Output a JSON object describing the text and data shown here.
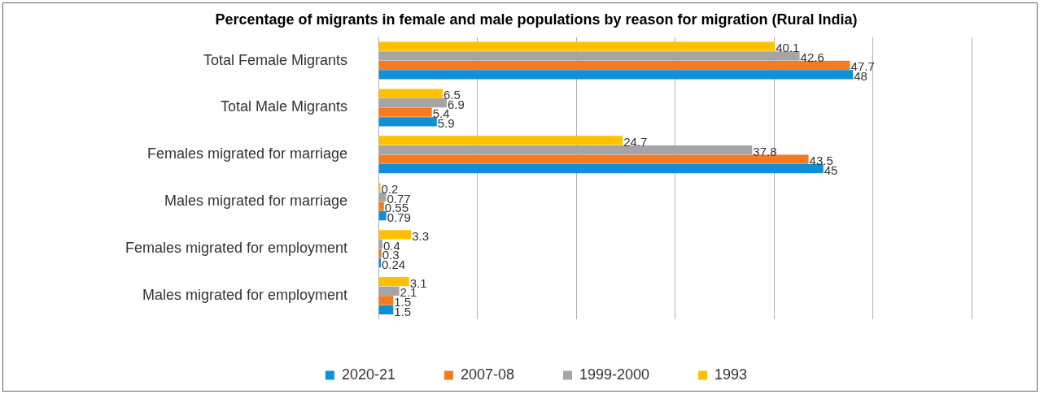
{
  "chart_data": {
    "type": "bar",
    "orientation": "horizontal",
    "title": "Percentage of migrants in female and male populations by reason for migration (Rural India)",
    "categories": [
      "Total Female Migrants",
      "Total Male Migrants",
      "Females migrated for marriage",
      "Males migrated for marriage",
      "Females migrated for employment",
      "Males migrated for employment"
    ],
    "series": [
      {
        "name": "2020-21",
        "color": "#0f8fd6",
        "values": [
          48,
          5.9,
          45,
          0.79,
          0.24,
          1.5
        ]
      },
      {
        "name": "2007-08",
        "color": "#f47b20",
        "values": [
          47.7,
          5.4,
          43.5,
          0.55,
          0.3,
          1.5
        ]
      },
      {
        "name": "1999-2000",
        "color": "#a5a5a5",
        "values": [
          42.6,
          6.9,
          37.8,
          0.77,
          0.4,
          2.1
        ]
      },
      {
        "name": "1993",
        "color": "#ffc000",
        "values": [
          40.1,
          6.5,
          24.7,
          0.2,
          3.3,
          3.1
        ]
      }
    ],
    "xlim": [
      0,
      60
    ],
    "xticks": [
      {
        "value": 0,
        "label": null
      },
      {
        "value": 10,
        "label": null
      },
      {
        "value": 20,
        "label": null
      },
      {
        "value": 30,
        "label": null
      },
      {
        "value": 40,
        "label": null
      },
      {
        "value": 50,
        "label": null
      },
      {
        "value": 60,
        "label": null
      }
    ],
    "tick_labels": "y",
    "grid": "x",
    "legend": "bottom",
    "data_labels": true
  }
}
